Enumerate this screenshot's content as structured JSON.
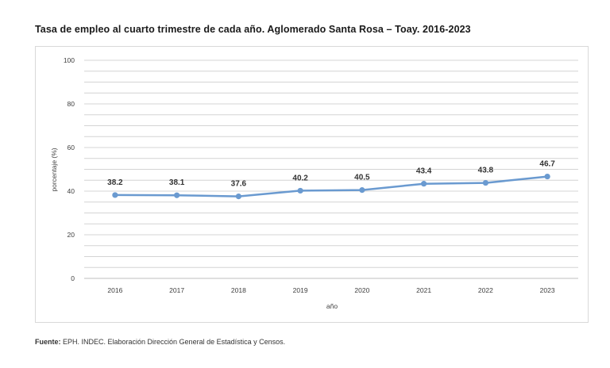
{
  "title": "Tasa de empleo al cuarto trimestre de cada año. Aglomerado Santa Rosa – Toay. 2016-2023",
  "footer": {
    "label": "Fuente:",
    "text": " EPH. INDEC. Elaboración Dirección General de Estadística y Censos."
  },
  "colors": {
    "line": "#6a9ad0",
    "grid": "#d4d4d4",
    "text": "#404040"
  },
  "chart_data": {
    "type": "line",
    "title": "Tasa de empleo al cuarto trimestre de cada año. Aglomerado Santa Rosa – Toay. 2016-2023",
    "xlabel": "año",
    "ylabel": "porcentaje (%)",
    "categories": [
      "2016",
      "2017",
      "2018",
      "2019",
      "2020",
      "2021",
      "2022",
      "2023"
    ],
    "series": [
      {
        "values": [
          38.2,
          38.1,
          37.6,
          40.2,
          40.5,
          43.4,
          43.8,
          46.7
        ]
      }
    ],
    "data_labels": [
      "38.2",
      "38.1",
      "37.6",
      "40.2",
      "40.5",
      "43.4",
      "43.8",
      "46.7"
    ],
    "ylim": [
      0,
      100
    ],
    "yticks": [
      "0",
      "20",
      "40",
      "60",
      "80",
      "100"
    ],
    "grid": true,
    "legend": "none"
  }
}
